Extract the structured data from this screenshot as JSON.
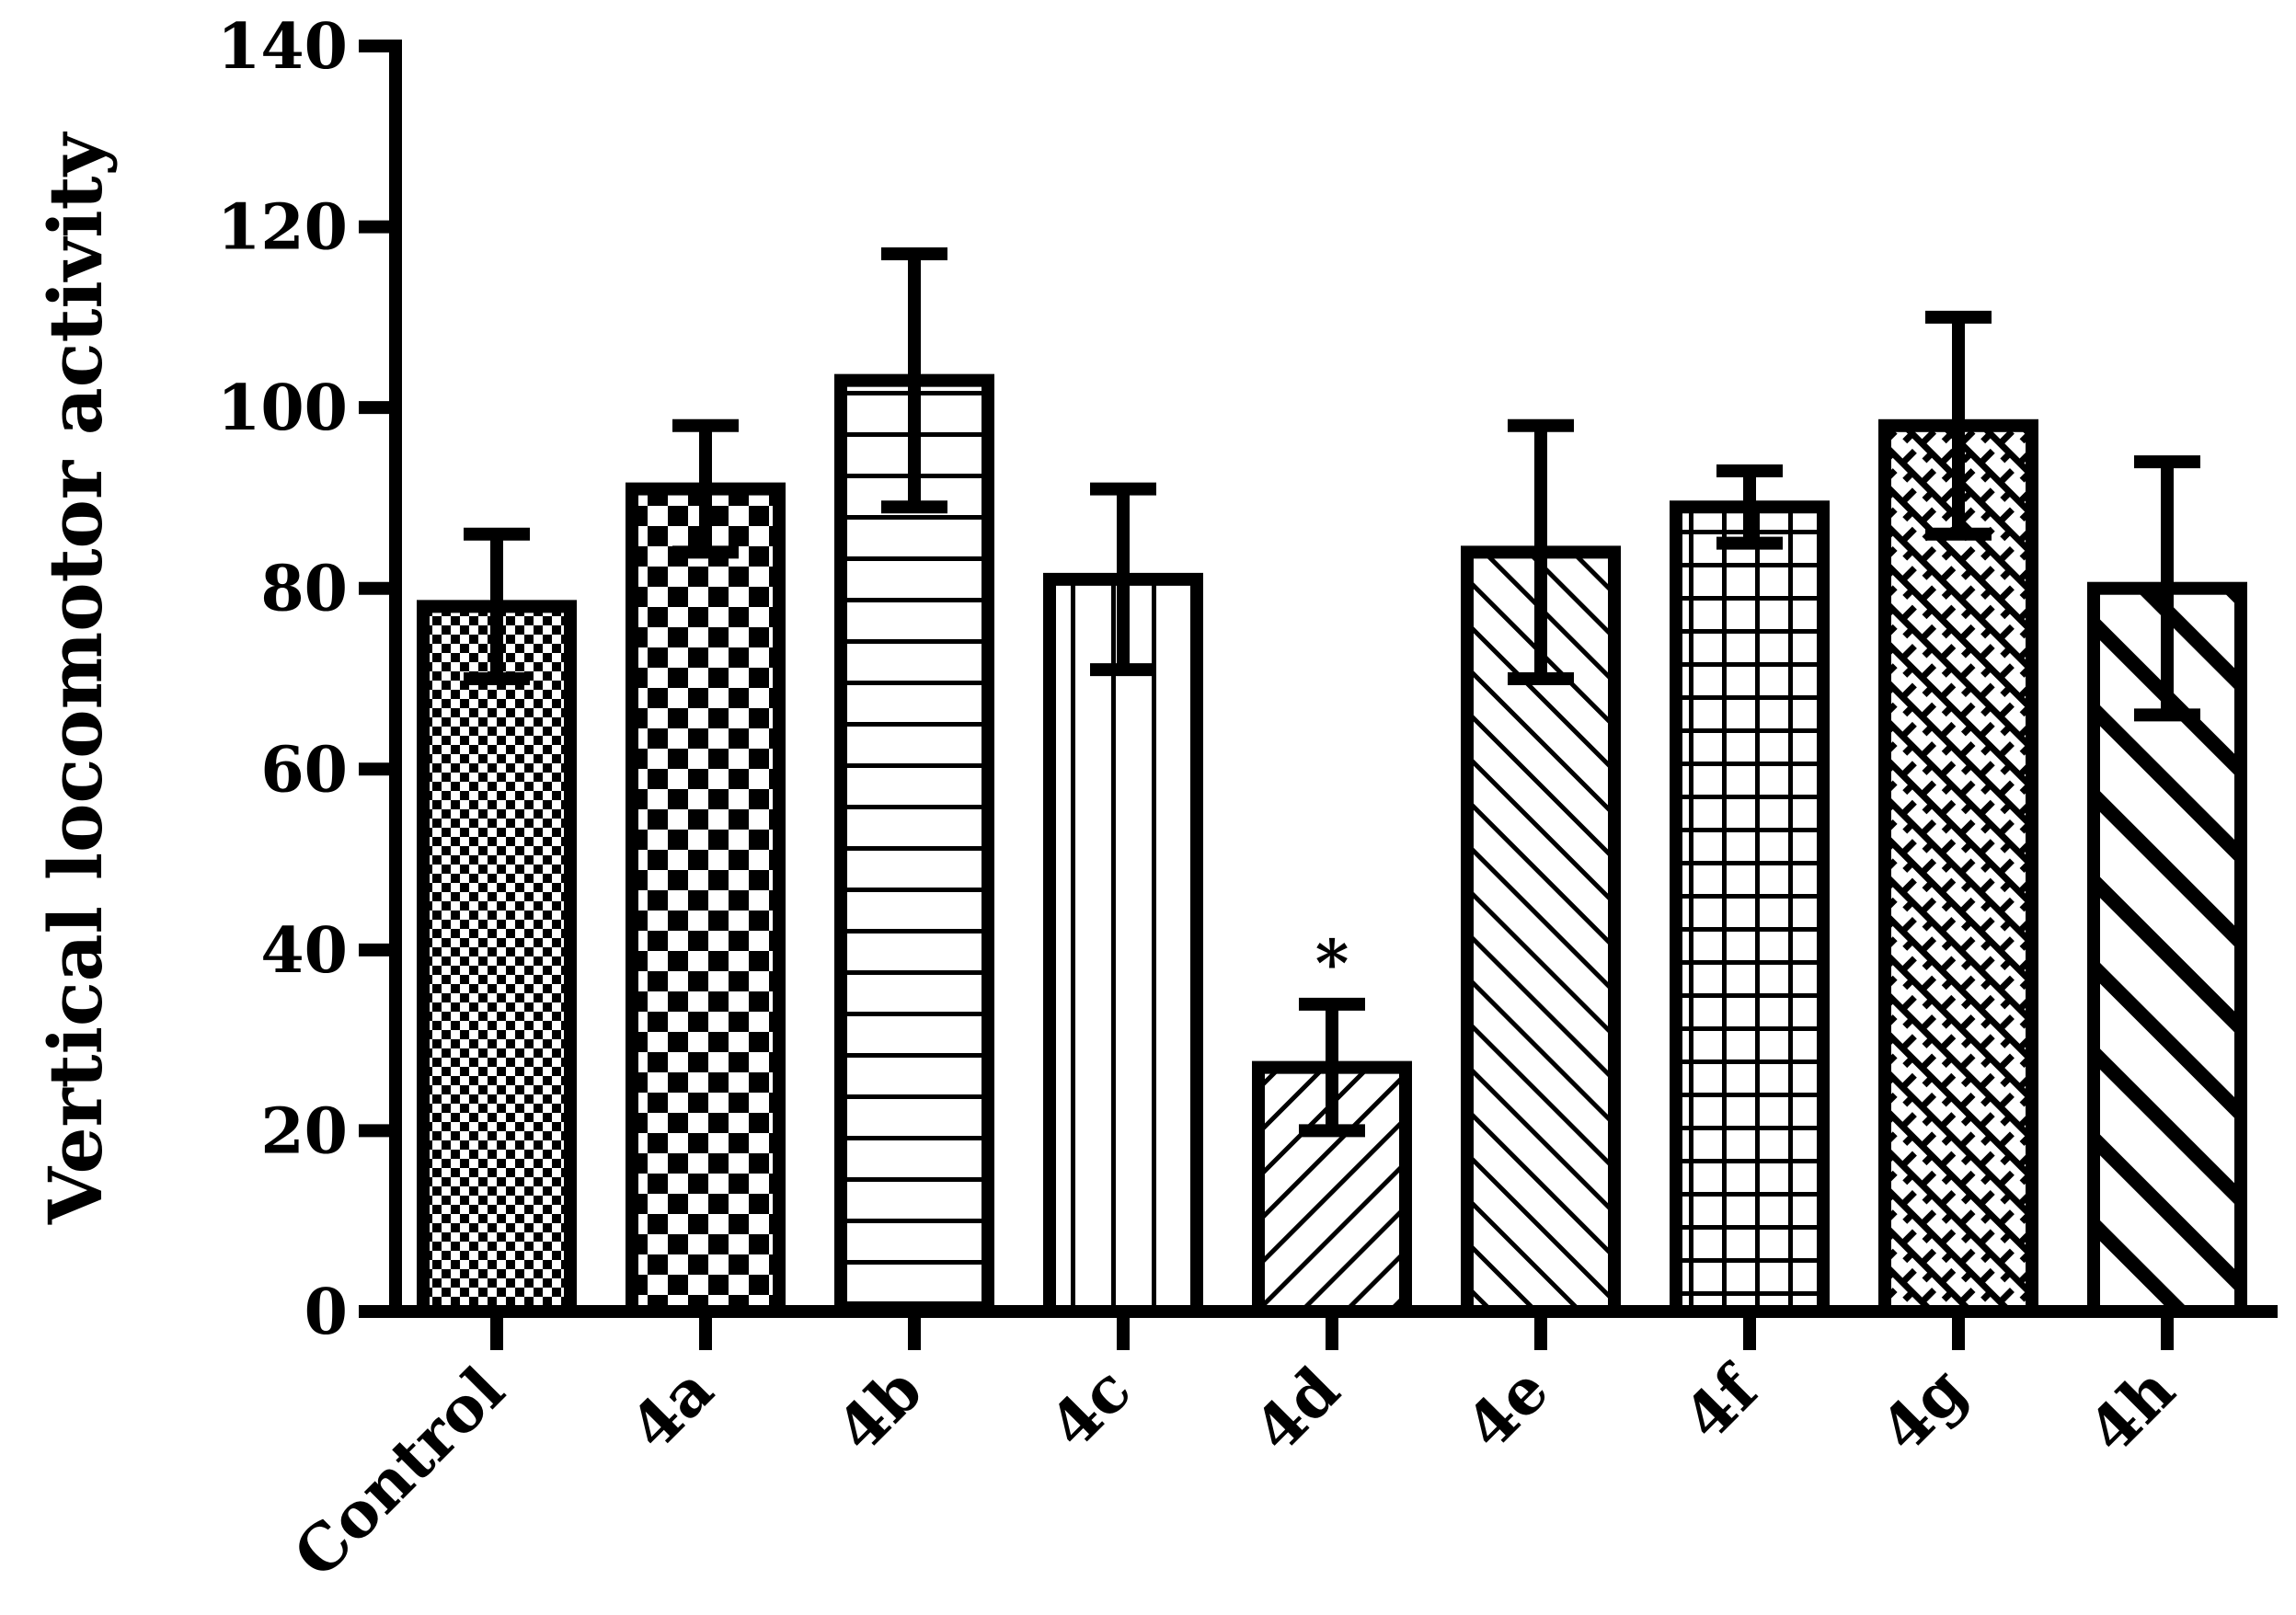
{
  "chart_data": {
    "type": "bar",
    "title": "",
    "xlabel": "",
    "ylabel": "Vertical locomotor activity",
    "ylim": [
      0,
      140
    ],
    "yticks": [
      0,
      20,
      40,
      60,
      80,
      100,
      120,
      140
    ],
    "grid": false,
    "legend": "none",
    "categories": [
      "Control",
      "4a",
      "4b",
      "4c",
      "4d",
      "4e",
      "4f",
      "4g",
      "4h"
    ],
    "values": [
      78,
      91,
      103,
      81,
      27,
      84,
      89,
      98,
      80
    ],
    "errors": [
      8,
      7,
      14,
      10,
      7,
      14,
      4,
      12,
      14
    ],
    "patterns": [
      "fine-checker",
      "checker",
      "horizontal",
      "vertical",
      "diag-up",
      "diag-down",
      "grid",
      "brick",
      "diag-down-wide"
    ],
    "annotations": [
      {
        "category": "4d",
        "text": "*"
      }
    ],
    "colors": {
      "ink": "#000000",
      "background": "#ffffff"
    }
  }
}
